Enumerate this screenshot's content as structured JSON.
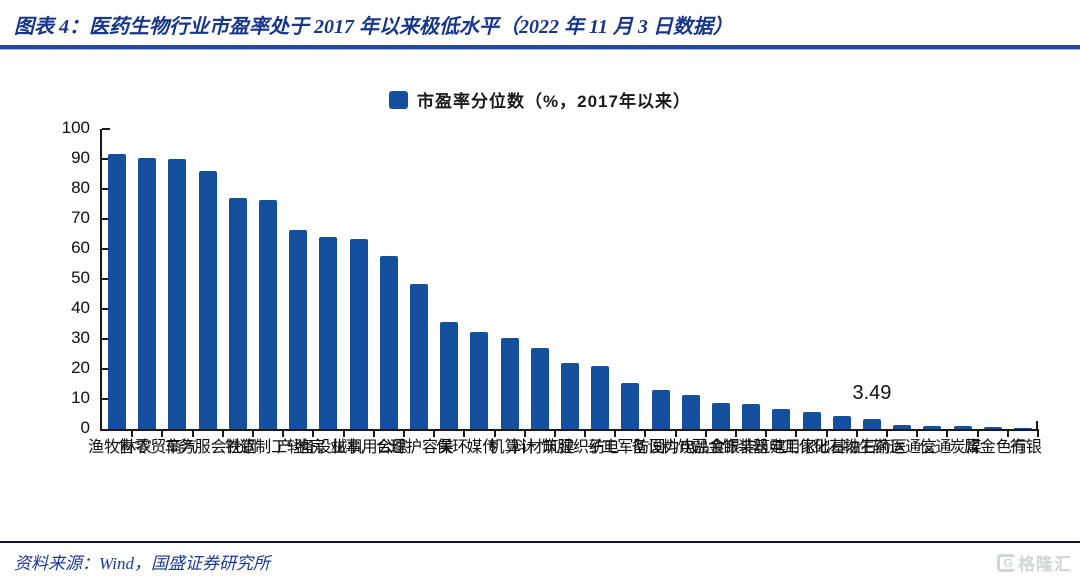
{
  "header": {
    "title": "图表 4：医药生物行业市盈率处于 2017 年以来极低水平（2022 年 11 月 3 日数据）"
  },
  "chart_data": {
    "type": "bar",
    "legend": "市盈率分位数（%，2017年以来）",
    "legend_position": "top-center",
    "grid": false,
    "ylim": [
      0,
      100
    ],
    "y_ticks": [
      0,
      10,
      20,
      30,
      40,
      50,
      60,
      70,
      80,
      90,
      100
    ],
    "bar_color": "#14509E",
    "categories": [
      "农林牧渔",
      "商贸零售",
      "汽车",
      "社会服务",
      "钢铁",
      "轻工制造",
      "房地产",
      "机械设备",
      "公用事业",
      "综合",
      "美容护理",
      "环保",
      "传媒",
      "计算机",
      "建筑材料",
      "纺织服饰",
      "电子",
      "国防军工",
      "电力设备",
      "食品饮料",
      "非银金融",
      "建筑装饰",
      "家用电器",
      "基础化工",
      "石油石化",
      "医药生物",
      "交通运输",
      "通信",
      "煤炭",
      "有色金属",
      "银行"
    ],
    "values": [
      91.7,
      90.2,
      90.0,
      86.0,
      77.0,
      76.4,
      66.5,
      64.0,
      63.5,
      57.8,
      48.5,
      35.8,
      32.5,
      30.5,
      27.0,
      22.0,
      21.0,
      15.5,
      13.0,
      11.2,
      8.8,
      8.3,
      6.8,
      5.7,
      4.3,
      3.49,
      1.2,
      1.0,
      1.0,
      0.8,
      0.3
    ],
    "annotation": {
      "text": "3.49",
      "category_index": 25
    }
  },
  "footer": {
    "source": "资料来源：Wind，国盛证券研究所"
  },
  "watermark": {
    "icon_letter": "G",
    "text": "格隆汇"
  }
}
